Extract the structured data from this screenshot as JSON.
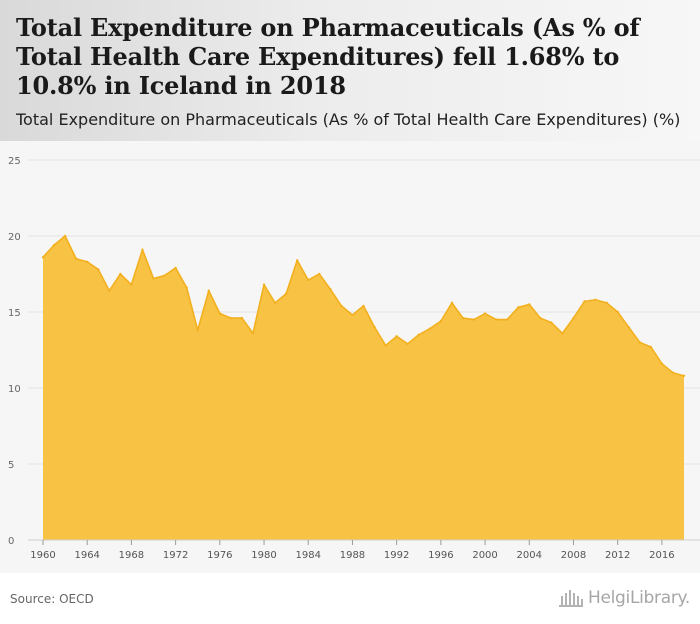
{
  "header": {
    "title": "Total Expenditure on Pharmaceuticals (As % of Total Health Care Expenditures) fell 1.68% to 10.8% in Iceland in 2018",
    "subtitle": "Total Expenditure on Pharmaceuticals (As % of Total Health Care Expenditures) (%)"
  },
  "footer": {
    "source": "Source: OECD",
    "brand": "HelgiLibrary."
  },
  "colors": {
    "area_fill": "#f8c244",
    "area_line": "#f2b01e",
    "grid": "#e2e2e2",
    "header_bg": "#e6e6e6",
    "plot_bg": "#f6f6f6"
  },
  "icons": {
    "brand": "library-building-icon"
  },
  "chart_data": {
    "type": "area",
    "title": "Total Expenditure on Pharmaceuticals (As % of Total Health Care Expenditures) fell 1.68% to 10.8% in Iceland in 2018",
    "subtitle": "Total Expenditure on Pharmaceuticals (As % of Total Health Care Expenditures) (%)",
    "xlabel": "",
    "ylabel": "",
    "x": [
      1960,
      1961,
      1962,
      1963,
      1964,
      1965,
      1966,
      1967,
      1968,
      1969,
      1970,
      1971,
      1972,
      1973,
      1974,
      1975,
      1976,
      1977,
      1978,
      1979,
      1980,
      1981,
      1982,
      1983,
      1984,
      1985,
      1986,
      1987,
      1988,
      1989,
      1990,
      1991,
      1992,
      1993,
      1994,
      1995,
      1996,
      1997,
      1998,
      1999,
      2000,
      2001,
      2002,
      2003,
      2004,
      2005,
      2006,
      2007,
      2008,
      2009,
      2010,
      2011,
      2012,
      2013,
      2014,
      2015,
      2016,
      2017,
      2018
    ],
    "series": [
      {
        "values": [
          18.6,
          19.4,
          20.0,
          18.5,
          18.3,
          17.8,
          16.4,
          17.5,
          16.8,
          19.1,
          17.2,
          17.4,
          17.9,
          16.6,
          13.8,
          16.4,
          14.9,
          14.6,
          14.6,
          13.6,
          16.8,
          15.6,
          16.2,
          18.4,
          17.1,
          17.5,
          16.5,
          15.4,
          14.8,
          15.4,
          14.0,
          12.8,
          13.4,
          12.9,
          13.5,
          13.9,
          14.4,
          15.6,
          14.6,
          14.5,
          14.9,
          14.5,
          14.5,
          15.3,
          15.5,
          14.6,
          14.3,
          13.6,
          14.6,
          15.7,
          15.8,
          15.6,
          15.0,
          14.0,
          13.0,
          12.7,
          11.6,
          11.0,
          10.8
        ]
      }
    ],
    "xticks": [
      "1960",
      "1964",
      "1968",
      "1972",
      "1976",
      "1980",
      "1984",
      "1988",
      "1992",
      "1996",
      "2000",
      "2004",
      "2008",
      "2012",
      "2016"
    ],
    "yticks": [
      "0",
      "5",
      "10",
      "15",
      "20",
      "25"
    ],
    "xlim": [
      1960,
      2018
    ],
    "ylim": [
      0,
      25
    ],
    "grid": true,
    "legend": "none"
  }
}
